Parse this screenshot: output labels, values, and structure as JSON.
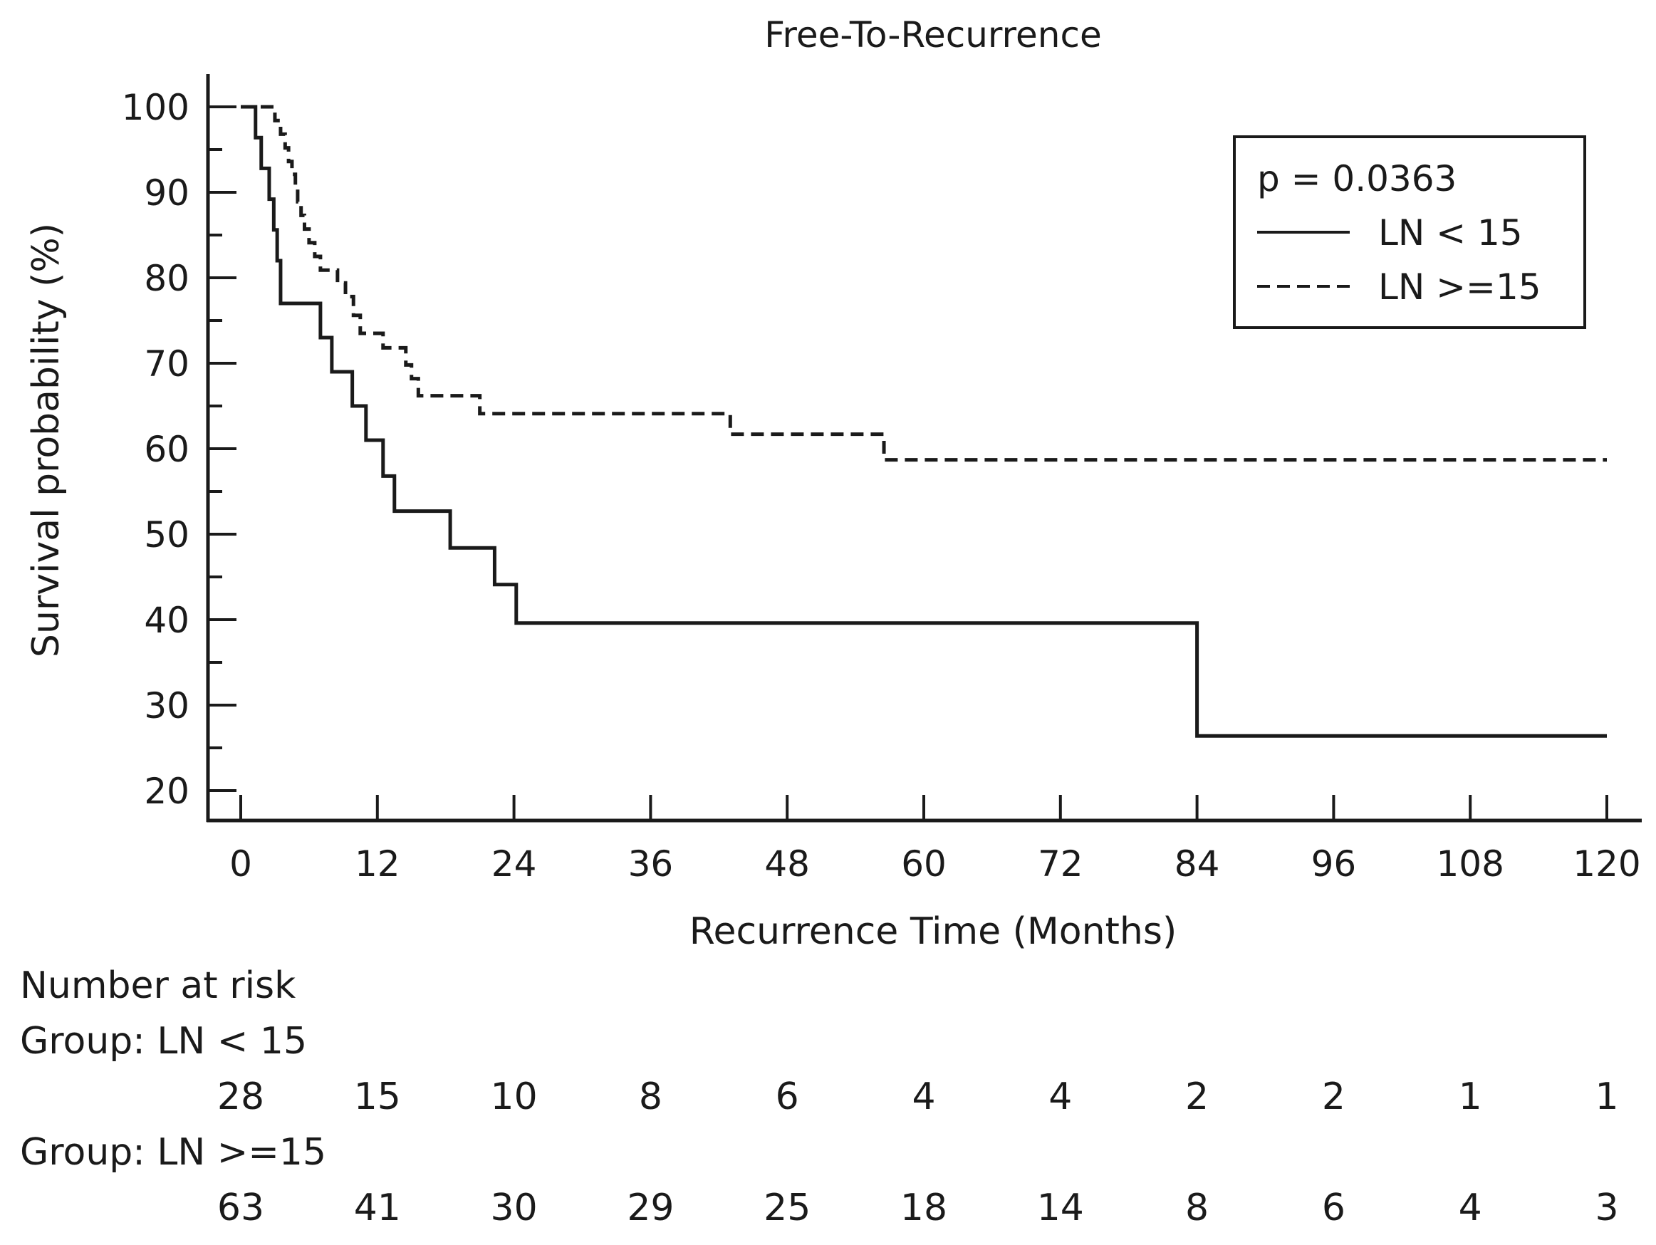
{
  "chart_data": {
    "type": "line",
    "subtype": "kaplan-meier",
    "title": "Free-To-Recurrence",
    "xlabel": "Recurrence Time (Months)",
    "ylabel": "Survival probability (%)",
    "xlim": [
      0,
      120
    ],
    "ylim": [
      20,
      100
    ],
    "x_ticks": [
      0,
      12,
      24,
      36,
      48,
      60,
      72,
      84,
      96,
      108,
      120
    ],
    "y_ticks": [
      20,
      30,
      40,
      50,
      60,
      70,
      80,
      90,
      100
    ],
    "x_tick_labels": [
      "0",
      "12",
      "24",
      "36",
      "48",
      "60",
      "72",
      "84",
      "96",
      "108",
      "120"
    ],
    "y_tick_labels": [
      "20",
      "30",
      "40",
      "50",
      "60",
      "70",
      "80",
      "90",
      "100"
    ],
    "grid": false,
    "legend_position": "top-right",
    "p_value_text": "p = 0.0363",
    "series": [
      {
        "name": "LN < 15",
        "style": "solid",
        "color": "#1a1a1a",
        "steps": [
          [
            0,
            100
          ],
          [
            1.3,
            96.4
          ],
          [
            1.8,
            92.8
          ],
          [
            2.5,
            89.2
          ],
          [
            2.9,
            85.6
          ],
          [
            3.2,
            82.0
          ],
          [
            3.5,
            77.0
          ],
          [
            7,
            73.0
          ],
          [
            8,
            69.0
          ],
          [
            9.8,
            65.0
          ],
          [
            11,
            61.0
          ],
          [
            12.5,
            56.8
          ],
          [
            13.5,
            52.7
          ],
          [
            18.4,
            48.4
          ],
          [
            22.3,
            44.1
          ],
          [
            24.2,
            39.6
          ],
          [
            84,
            26.4
          ],
          [
            120,
            26.4
          ]
        ]
      },
      {
        "name": "LN >=15",
        "style": "dashed",
        "color": "#1a1a1a",
        "steps": [
          [
            0,
            100
          ],
          [
            3,
            98.4
          ],
          [
            3.5,
            96.8
          ],
          [
            3.9,
            95.2
          ],
          [
            4.2,
            93.6
          ],
          [
            4.5,
            92.1
          ],
          [
            4.8,
            90.5
          ],
          [
            5.0,
            88.9
          ],
          [
            5.3,
            87.3
          ],
          [
            5.6,
            85.7
          ],
          [
            6.0,
            84.1
          ],
          [
            6.5,
            82.5
          ],
          [
            7,
            80.9
          ],
          [
            8.5,
            79.4
          ],
          [
            9.2,
            77.8
          ],
          [
            9.9,
            75.6
          ],
          [
            10.5,
            73.5
          ],
          [
            12.5,
            71.8
          ],
          [
            14.5,
            69.8
          ],
          [
            15,
            68.2
          ],
          [
            15.6,
            66.2
          ],
          [
            21,
            64.1
          ],
          [
            43,
            61.7
          ],
          [
            56.5,
            58.7
          ],
          [
            120,
            58.7
          ]
        ]
      }
    ],
    "risk_table": {
      "title": "Number at risk",
      "times": [
        0,
        12,
        24,
        36,
        48,
        60,
        72,
        84,
        96,
        108,
        120
      ],
      "groups": [
        {
          "label": "Group: LN < 15",
          "counts": [
            "28",
            "15",
            "10",
            "8",
            "6",
            "4",
            "4",
            "2",
            "2",
            "1",
            "1"
          ]
        },
        {
          "label": "Group: LN >=15",
          "counts": [
            "63",
            "41",
            "30",
            "29",
            "25",
            "18",
            "14",
            "8",
            "6",
            "4",
            "3"
          ]
        }
      ]
    }
  }
}
